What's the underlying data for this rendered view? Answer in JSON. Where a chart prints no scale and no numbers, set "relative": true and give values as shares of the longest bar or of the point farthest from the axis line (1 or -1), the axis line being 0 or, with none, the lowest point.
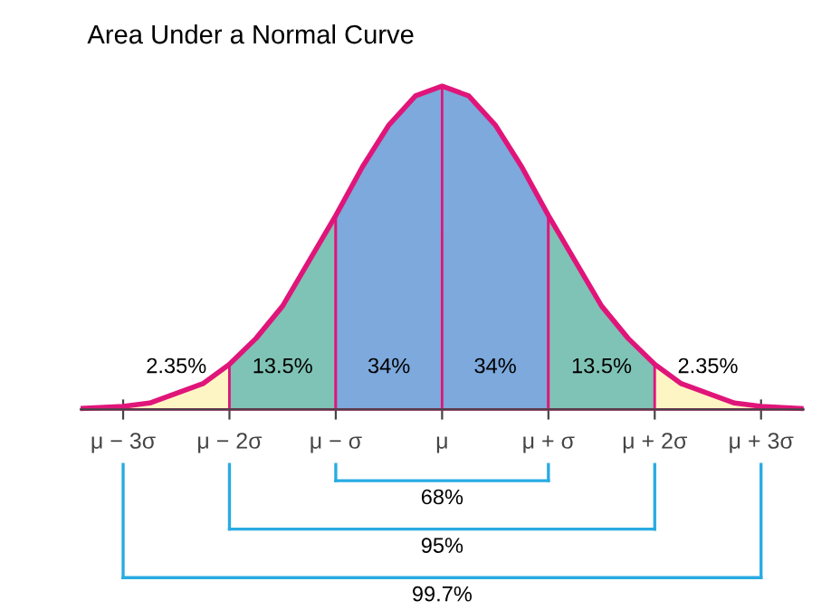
{
  "chart_data": {
    "type": "area",
    "title": "Area Under a Normal Curve",
    "relative": true,
    "series": [
      {
        "color": "#fdf5c4",
        "x": [
          -3.4,
          -3.0,
          -2.75,
          -2.5,
          -2.25,
          -2.0
        ],
        "values": [
          0.003,
          0.01,
          0.02,
          0.05,
          0.08,
          0.14
        ]
      },
      {
        "color": "#7fc3b6",
        "x": [
          -2.0,
          -1.75,
          -1.5,
          -1.25,
          -1.0
        ],
        "values": [
          0.14,
          0.22,
          0.32,
          0.46,
          0.6
        ]
      },
      {
        "color": "#7da9dc",
        "x": [
          -1.0,
          -0.75,
          -0.5,
          -0.25,
          0.0
        ],
        "values": [
          0.6,
          0.75,
          0.88,
          0.97,
          1.0
        ]
      },
      {
        "color": "#7da9dc",
        "x": [
          0.0,
          0.25,
          0.5,
          0.75,
          1.0
        ],
        "values": [
          1.0,
          0.97,
          0.88,
          0.75,
          0.6
        ]
      },
      {
        "color": "#7fc3b6",
        "x": [
          1.0,
          1.25,
          1.5,
          1.75,
          2.0
        ],
        "values": [
          0.6,
          0.46,
          0.32,
          0.22,
          0.14
        ]
      },
      {
        "color": "#fdf5c4",
        "x": [
          2.0,
          2.25,
          2.5,
          2.75,
          3.0,
          3.4
        ],
        "values": [
          0.14,
          0.08,
          0.05,
          0.02,
          0.01,
          0.003
        ]
      },
      {
        "type": "line",
        "color": "#e0157a",
        "x": [
          -3.4,
          -3.0,
          -2.75,
          -2.5,
          -2.25,
          -2.0,
          -1.75,
          -1.5,
          -1.25,
          -1.0,
          -0.75,
          -0.5,
          -0.25,
          0.0,
          0.25,
          0.5,
          0.75,
          1.0,
          1.25,
          1.5,
          1.75,
          2.0,
          2.25,
          2.5,
          2.75,
          3.0,
          3.4
        ],
        "values": [
          0.003,
          0.01,
          0.02,
          0.05,
          0.08,
          0.14,
          0.22,
          0.32,
          0.46,
          0.6,
          0.75,
          0.88,
          0.97,
          1.0,
          0.97,
          0.88,
          0.75,
          0.6,
          0.46,
          0.32,
          0.22,
          0.14,
          0.08,
          0.05,
          0.02,
          0.01,
          0.003
        ]
      }
    ],
    "xlim": [
      -3.4,
      3.4
    ],
    "xticks": [
      {
        "value": -3,
        "label": "μ − 3σ"
      },
      {
        "value": -2,
        "label": "μ − 2σ"
      },
      {
        "value": -1,
        "label": "μ − σ"
      },
      {
        "value": 0,
        "label": "μ"
      },
      {
        "value": 1,
        "label": "μ + σ"
      },
      {
        "value": 2,
        "label": "μ + 2σ"
      },
      {
        "value": 3,
        "label": "μ + 3σ"
      }
    ],
    "annotations": [
      "2.35%",
      "13.5%",
      "34%",
      "34%",
      "13.5%",
      "2.35%",
      "68%",
      "95%",
      "99.7%"
    ]
  }
}
